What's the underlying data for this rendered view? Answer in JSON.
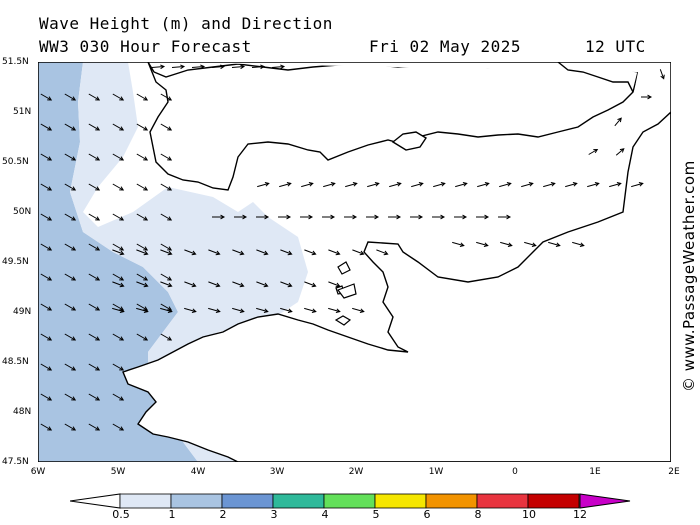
{
  "header": {
    "title_line1": "Wave Height (m) and Direction",
    "title_line2": "WW3 030 Hour Forecast",
    "date": "Fri 02 May 2025",
    "time": "12 UTC"
  },
  "axes": {
    "lat_labels": [
      "51.5N",
      "51N",
      "50.5N",
      "50N",
      "49.5N",
      "49N",
      "48.5N",
      "48N",
      "47.5N"
    ],
    "lon_labels": [
      "6W",
      "5W",
      "4W",
      "3W",
      "2W",
      "1W",
      "0",
      "1E",
      "2E"
    ]
  },
  "watermark": "© www.PassageWeather.com",
  "colorbar": {
    "labels": [
      "0.5",
      "1",
      "2",
      "3",
      "4",
      "5",
      "6",
      "8",
      "10",
      "12"
    ],
    "colors": [
      "#dfe8f5",
      "#a9c4e2",
      "#6b95d3",
      "#2fb99a",
      "#63e05a",
      "#f5e600",
      "#f29300",
      "#e8343f",
      "#c40000",
      "#c800c8"
    ]
  },
  "map": {
    "land_color": "#ffffff",
    "sea_low_color": "#ffffff",
    "arrow_color": "#000000"
  }
}
